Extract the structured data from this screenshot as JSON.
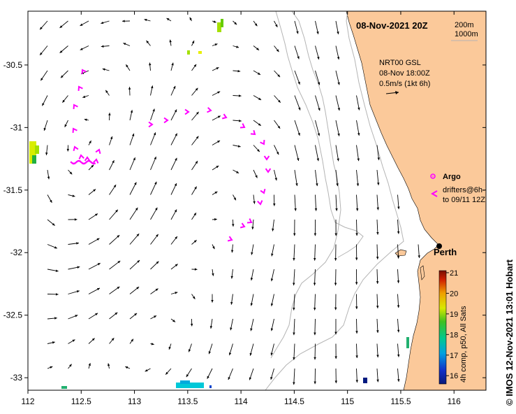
{
  "title": "08-Nov-2021 20Z",
  "depth_contours": [
    "200m",
    "1000m"
  ],
  "current_legend": {
    "line1": "NRT00 GSL",
    "line2": "08-Nov 18:00Z",
    "line3": "0.5m/s (1kt 6h)"
  },
  "argo_label": "Argo",
  "drifters_label_line1": "drifters@6h-",
  "drifters_label_line2": "to 09/11 12Z",
  "city": "Perth",
  "colorbar": {
    "label": "4h comp, p50, All Sats",
    "ticks": [
      "21",
      "20",
      "19",
      "18",
      "17",
      "16"
    ],
    "min": 15.6,
    "max": 21.1
  },
  "credit": "© IMOS 12-Nov-2021 13:01 Hobart",
  "axes": {
    "x_ticks": [
      "112",
      "112.5",
      "113",
      "113.5",
      "114",
      "114.5",
      "115",
      "115.5",
      "116"
    ],
    "y_ticks": [
      "-30.5",
      "-31",
      "-31.5",
      "-32",
      "-32.5",
      "-33"
    ],
    "lon_range": [
      112,
      116.3
    ],
    "lat_range": [
      -33.1,
      -30.07
    ]
  },
  "colors": {
    "land": "#fbc99a",
    "drifter": "#ff00ff",
    "argo": "#ff00ff",
    "contour": "#b4b4b4",
    "arrow": "#000000"
  }
}
